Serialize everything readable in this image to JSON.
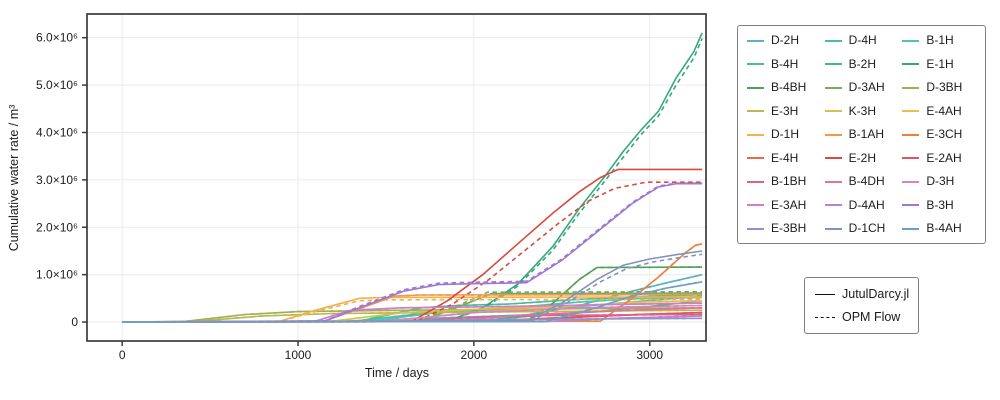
{
  "figure": {
    "ylabel": "Cumulative water rate / m³",
    "xlabel": "Time / days"
  },
  "chart_data": {
    "type": "line",
    "title": "",
    "xlabel": "Time / days",
    "ylabel": "Cumulative water rate / m³",
    "xlim": [
      -200,
      3320
    ],
    "ylim": [
      -400000,
      6500000
    ],
    "grid": true,
    "legend_position": "outside-right",
    "grid_color": "#ececec",
    "spine_color": "#3b3b3b",
    "xticks": {
      "values": [
        0,
        1000,
        2000,
        3000
      ],
      "labels": [
        "0",
        "1000",
        "2000",
        "3000"
      ]
    },
    "yticks": {
      "values": [
        0,
        1000000,
        2000000,
        3000000,
        4000000,
        5000000,
        6000000
      ],
      "labels": [
        "0",
        "1.0×10⁶",
        "2.0×10⁶",
        "3.0×10⁶",
        "4.0×10⁶",
        "5.0×10⁶",
        "6.0×10⁶"
      ]
    },
    "line_styles": {
      "JutulDarcy.jl": "solid",
      "OPM Flow": "dashed"
    },
    "series": [
      {
        "name": "D-2H",
        "color": "#58b2c8",
        "jutul": [
          [
            0,
            0
          ],
          [
            1200,
            10000
          ],
          [
            1600,
            60000
          ],
          [
            2000,
            110000
          ],
          [
            2300,
            150000
          ],
          [
            2600,
            350000
          ],
          [
            2900,
            650000
          ],
          [
            3100,
            830000
          ],
          [
            3298,
            1000000
          ]
        ]
      },
      {
        "name": "D-4H",
        "color": "#4bbab4",
        "jutul": [
          [
            0,
            0
          ],
          [
            1300,
            10000
          ],
          [
            1700,
            180000
          ],
          [
            2100,
            260000
          ],
          [
            2500,
            300000
          ],
          [
            2900,
            420000
          ],
          [
            3298,
            550000
          ]
        ]
      },
      {
        "name": "B-1H",
        "color": "#52c3b1",
        "jutul": [
          [
            0,
            0
          ],
          [
            1400,
            20000
          ],
          [
            1800,
            200000
          ],
          [
            2200,
            300000
          ],
          [
            2600,
            420000
          ],
          [
            2900,
            490000
          ],
          [
            3298,
            520000
          ]
        ]
      },
      {
        "name": "B-4H",
        "color": "#43bd9e",
        "jutul": [
          [
            0,
            0
          ],
          [
            1350,
            20000
          ],
          [
            1700,
            300000
          ],
          [
            1900,
            350000
          ],
          [
            2200,
            380000
          ],
          [
            2600,
            480000
          ],
          [
            3000,
            540000
          ],
          [
            3298,
            580000
          ]
        ]
      },
      {
        "name": "B-2H",
        "color": "#3eb78d",
        "jutul": [
          [
            0,
            0
          ],
          [
            2000,
            20000
          ],
          [
            2300,
            120000
          ],
          [
            2700,
            220000
          ],
          [
            3000,
            330000
          ],
          [
            3298,
            450000
          ]
        ]
      },
      {
        "name": "E-1H",
        "color": "#35a87c",
        "jutul": [
          [
            0,
            0
          ],
          [
            1850,
            20000
          ],
          [
            2050,
            300000
          ],
          [
            2250,
            800000
          ],
          [
            2450,
            1600000
          ],
          [
            2600,
            2400000
          ],
          [
            2750,
            3100000
          ],
          [
            2850,
            3600000
          ],
          [
            2950,
            4050000
          ],
          [
            3050,
            4450000
          ],
          [
            3150,
            5150000
          ],
          [
            3250,
            5700000
          ],
          [
            3298,
            6100000
          ]
        ],
        "opm": [
          [
            0,
            0
          ],
          [
            1850,
            20000
          ],
          [
            2050,
            280000
          ],
          [
            2250,
            760000
          ],
          [
            2450,
            1520000
          ],
          [
            2600,
            2300000
          ],
          [
            2750,
            3000000
          ],
          [
            2850,
            3480000
          ],
          [
            2950,
            3950000
          ],
          [
            3050,
            4350000
          ],
          [
            3150,
            5000000
          ],
          [
            3250,
            5570000
          ],
          [
            3298,
            5980000
          ]
        ]
      },
      {
        "name": "B-4BH",
        "color": "#52a159",
        "jutul": [
          [
            0,
            0
          ],
          [
            2300,
            20000
          ],
          [
            2450,
            400000
          ],
          [
            2600,
            900000
          ],
          [
            2700,
            1150000
          ],
          [
            3298,
            1160000
          ]
        ]
      },
      {
        "name": "D-3AH",
        "color": "#79aa58",
        "jutul": [
          [
            0,
            0
          ],
          [
            1700,
            20000
          ],
          [
            1900,
            300000
          ],
          [
            2100,
            600000
          ],
          [
            3298,
            610000
          ]
        ],
        "opm": [
          [
            0,
            0
          ],
          [
            1680,
            20000
          ],
          [
            1900,
            330000
          ],
          [
            2080,
            630000
          ],
          [
            3298,
            640000
          ]
        ]
      },
      {
        "name": "D-3BH",
        "color": "#9fb054",
        "jutul": [
          [
            0,
            0
          ],
          [
            350,
            10000
          ],
          [
            700,
            160000
          ],
          [
            1000,
            220000
          ],
          [
            1400,
            240000
          ],
          [
            2200,
            270000
          ],
          [
            3298,
            300000
          ]
        ]
      },
      {
        "name": "E-3H",
        "color": "#bcb74e",
        "jutul": [
          [
            0,
            0
          ],
          [
            400,
            10000
          ],
          [
            800,
            130000
          ],
          [
            1200,
            180000
          ],
          [
            2000,
            210000
          ],
          [
            3298,
            250000
          ]
        ]
      },
      {
        "name": "K-3H",
        "color": "#d7bf4e",
        "jutul": [
          [
            0,
            0
          ],
          [
            1200,
            20000
          ],
          [
            1600,
            200000
          ],
          [
            2200,
            300000
          ],
          [
            2800,
            380000
          ],
          [
            3298,
            400000
          ]
        ]
      },
      {
        "name": "E-4AH",
        "color": "#e9bf51",
        "jutul": [
          [
            0,
            0
          ],
          [
            1500,
            20000
          ],
          [
            2000,
            200000
          ],
          [
            2600,
            350000
          ],
          [
            3000,
            430000
          ],
          [
            3298,
            450000
          ]
        ]
      },
      {
        "name": "D-1H",
        "color": "#f0b150",
        "jutul": [
          [
            0,
            0
          ],
          [
            900,
            20000
          ],
          [
            1100,
            250000
          ],
          [
            1350,
            500000
          ],
          [
            1500,
            520000
          ],
          [
            3298,
            530000
          ]
        ],
        "opm": [
          [
            0,
            0
          ],
          [
            900,
            20000
          ],
          [
            1100,
            220000
          ],
          [
            1350,
            450000
          ],
          [
            1500,
            470000
          ],
          [
            3298,
            480000
          ]
        ]
      },
      {
        "name": "B-1AH",
        "color": "#ed9a4d",
        "jutul": [
          [
            0,
            0
          ],
          [
            1150,
            20000
          ],
          [
            1400,
            350000
          ],
          [
            1550,
            550000
          ],
          [
            1700,
            570000
          ],
          [
            3298,
            580000
          ]
        ]
      },
      {
        "name": "E-3CH",
        "color": "#e8833d",
        "jutul": [
          [
            0,
            0
          ],
          [
            2720,
            20000
          ],
          [
            2900,
            500000
          ],
          [
            3050,
            950000
          ],
          [
            3200,
            1450000
          ],
          [
            3260,
            1620000
          ],
          [
            3298,
            1650000
          ]
        ]
      },
      {
        "name": "E-4H",
        "color": "#e56c44",
        "jutul": [
          [
            0,
            0
          ],
          [
            1900,
            10000
          ],
          [
            2300,
            60000
          ],
          [
            2700,
            130000
          ],
          [
            3100,
            180000
          ],
          [
            3298,
            200000
          ]
        ]
      },
      {
        "name": "E-2H",
        "color": "#d84a3d",
        "jutul": [
          [
            0,
            0
          ],
          [
            1650,
            20000
          ],
          [
            1850,
            450000
          ],
          [
            2050,
            1000000
          ],
          [
            2250,
            1650000
          ],
          [
            2450,
            2300000
          ],
          [
            2600,
            2750000
          ],
          [
            2720,
            3050000
          ],
          [
            2820,
            3220000
          ],
          [
            3298,
            3220000
          ]
        ],
        "opm": [
          [
            0,
            0
          ],
          [
            1680,
            20000
          ],
          [
            1880,
            380000
          ],
          [
            2080,
            880000
          ],
          [
            2280,
            1480000
          ],
          [
            2480,
            2080000
          ],
          [
            2650,
            2550000
          ],
          [
            2800,
            2820000
          ],
          [
            2980,
            2950000
          ],
          [
            3298,
            2950000
          ]
        ]
      },
      {
        "name": "E-2AH",
        "color": "#e15263",
        "jutul": [
          [
            0,
            0
          ],
          [
            2100,
            10000
          ],
          [
            2500,
            90000
          ],
          [
            2900,
            150000
          ],
          [
            3298,
            200000
          ]
        ]
      },
      {
        "name": "B-1BH",
        "color": "#dc6486",
        "jutul": [
          [
            0,
            0
          ],
          [
            1600,
            10000
          ],
          [
            2000,
            100000
          ],
          [
            2400,
            140000
          ],
          [
            3298,
            160000
          ]
        ]
      },
      {
        "name": "B-4DH",
        "color": "#db74a4",
        "jutul": [
          [
            0,
            0
          ],
          [
            1800,
            10000
          ],
          [
            2300,
            150000
          ],
          [
            2900,
            250000
          ],
          [
            3298,
            300000
          ]
        ]
      },
      {
        "name": "D-3H",
        "color": "#d983bd",
        "jutul": [
          [
            0,
            0
          ],
          [
            1500,
            20000
          ],
          [
            2000,
            200000
          ],
          [
            2600,
            300000
          ],
          [
            3298,
            350000
          ]
        ]
      },
      {
        "name": "E-3AH",
        "color": "#d27cca",
        "jutul": [
          [
            0,
            0
          ],
          [
            1100,
            20000
          ],
          [
            1300,
            250000
          ],
          [
            1600,
            300000
          ],
          [
            2200,
            330000
          ],
          [
            2800,
            370000
          ],
          [
            3298,
            400000
          ]
        ]
      },
      {
        "name": "D-4AH",
        "color": "#bb82d4",
        "jutul": [
          [
            0,
            0
          ],
          [
            2400,
            10000
          ],
          [
            2800,
            80000
          ],
          [
            3298,
            130000
          ]
        ]
      },
      {
        "name": "B-3H",
        "color": "#9e79d2",
        "jutul": [
          [
            0,
            0
          ],
          [
            1150,
            20000
          ],
          [
            1350,
            300000
          ],
          [
            1600,
            650000
          ],
          [
            1800,
            790000
          ],
          [
            2000,
            810000
          ],
          [
            2300,
            830000
          ],
          [
            2500,
            1300000
          ],
          [
            2700,
            1900000
          ],
          [
            2900,
            2500000
          ],
          [
            3050,
            2850000
          ],
          [
            3150,
            2920000
          ],
          [
            3298,
            2920000
          ]
        ],
        "opm": [
          [
            0,
            0
          ],
          [
            1150,
            20000
          ],
          [
            1350,
            330000
          ],
          [
            1600,
            680000
          ],
          [
            1800,
            820000
          ],
          [
            2000,
            840000
          ],
          [
            2300,
            860000
          ],
          [
            2500,
            1330000
          ],
          [
            2700,
            1930000
          ],
          [
            2900,
            2520000
          ],
          [
            3050,
            2870000
          ],
          [
            3150,
            2930000
          ],
          [
            3298,
            2930000
          ]
        ]
      },
      {
        "name": "E-3BH",
        "color": "#958fcb",
        "jutul": [
          [
            0,
            0
          ],
          [
            1500,
            10000
          ],
          [
            2000,
            50000
          ],
          [
            3298,
            80000
          ]
        ]
      },
      {
        "name": "D-1CH",
        "color": "#8094bd",
        "jutul": [
          [
            0,
            0
          ],
          [
            2300,
            20000
          ],
          [
            2500,
            400000
          ],
          [
            2700,
            900000
          ],
          [
            2850,
            1200000
          ],
          [
            3000,
            1330000
          ],
          [
            3150,
            1420000
          ],
          [
            3298,
            1500000
          ]
        ],
        "opm": [
          [
            0,
            0
          ],
          [
            2320,
            20000
          ],
          [
            2520,
            380000
          ],
          [
            2720,
            850000
          ],
          [
            2870,
            1130000
          ],
          [
            3020,
            1270000
          ],
          [
            3170,
            1360000
          ],
          [
            3298,
            1430000
          ]
        ]
      },
      {
        "name": "B-4AH",
        "color": "#6da0c4",
        "jutul": [
          [
            0,
            0
          ],
          [
            2400,
            10000
          ],
          [
            2650,
            250000
          ],
          [
            2900,
            550000
          ],
          [
            3100,
            720000
          ],
          [
            3298,
            850000
          ]
        ]
      }
    ]
  },
  "legend_sim": {
    "items": [
      {
        "label": "JutulDarcy.jl",
        "style": "solid"
      },
      {
        "label": "OPM Flow",
        "style": "dashed"
      }
    ]
  }
}
